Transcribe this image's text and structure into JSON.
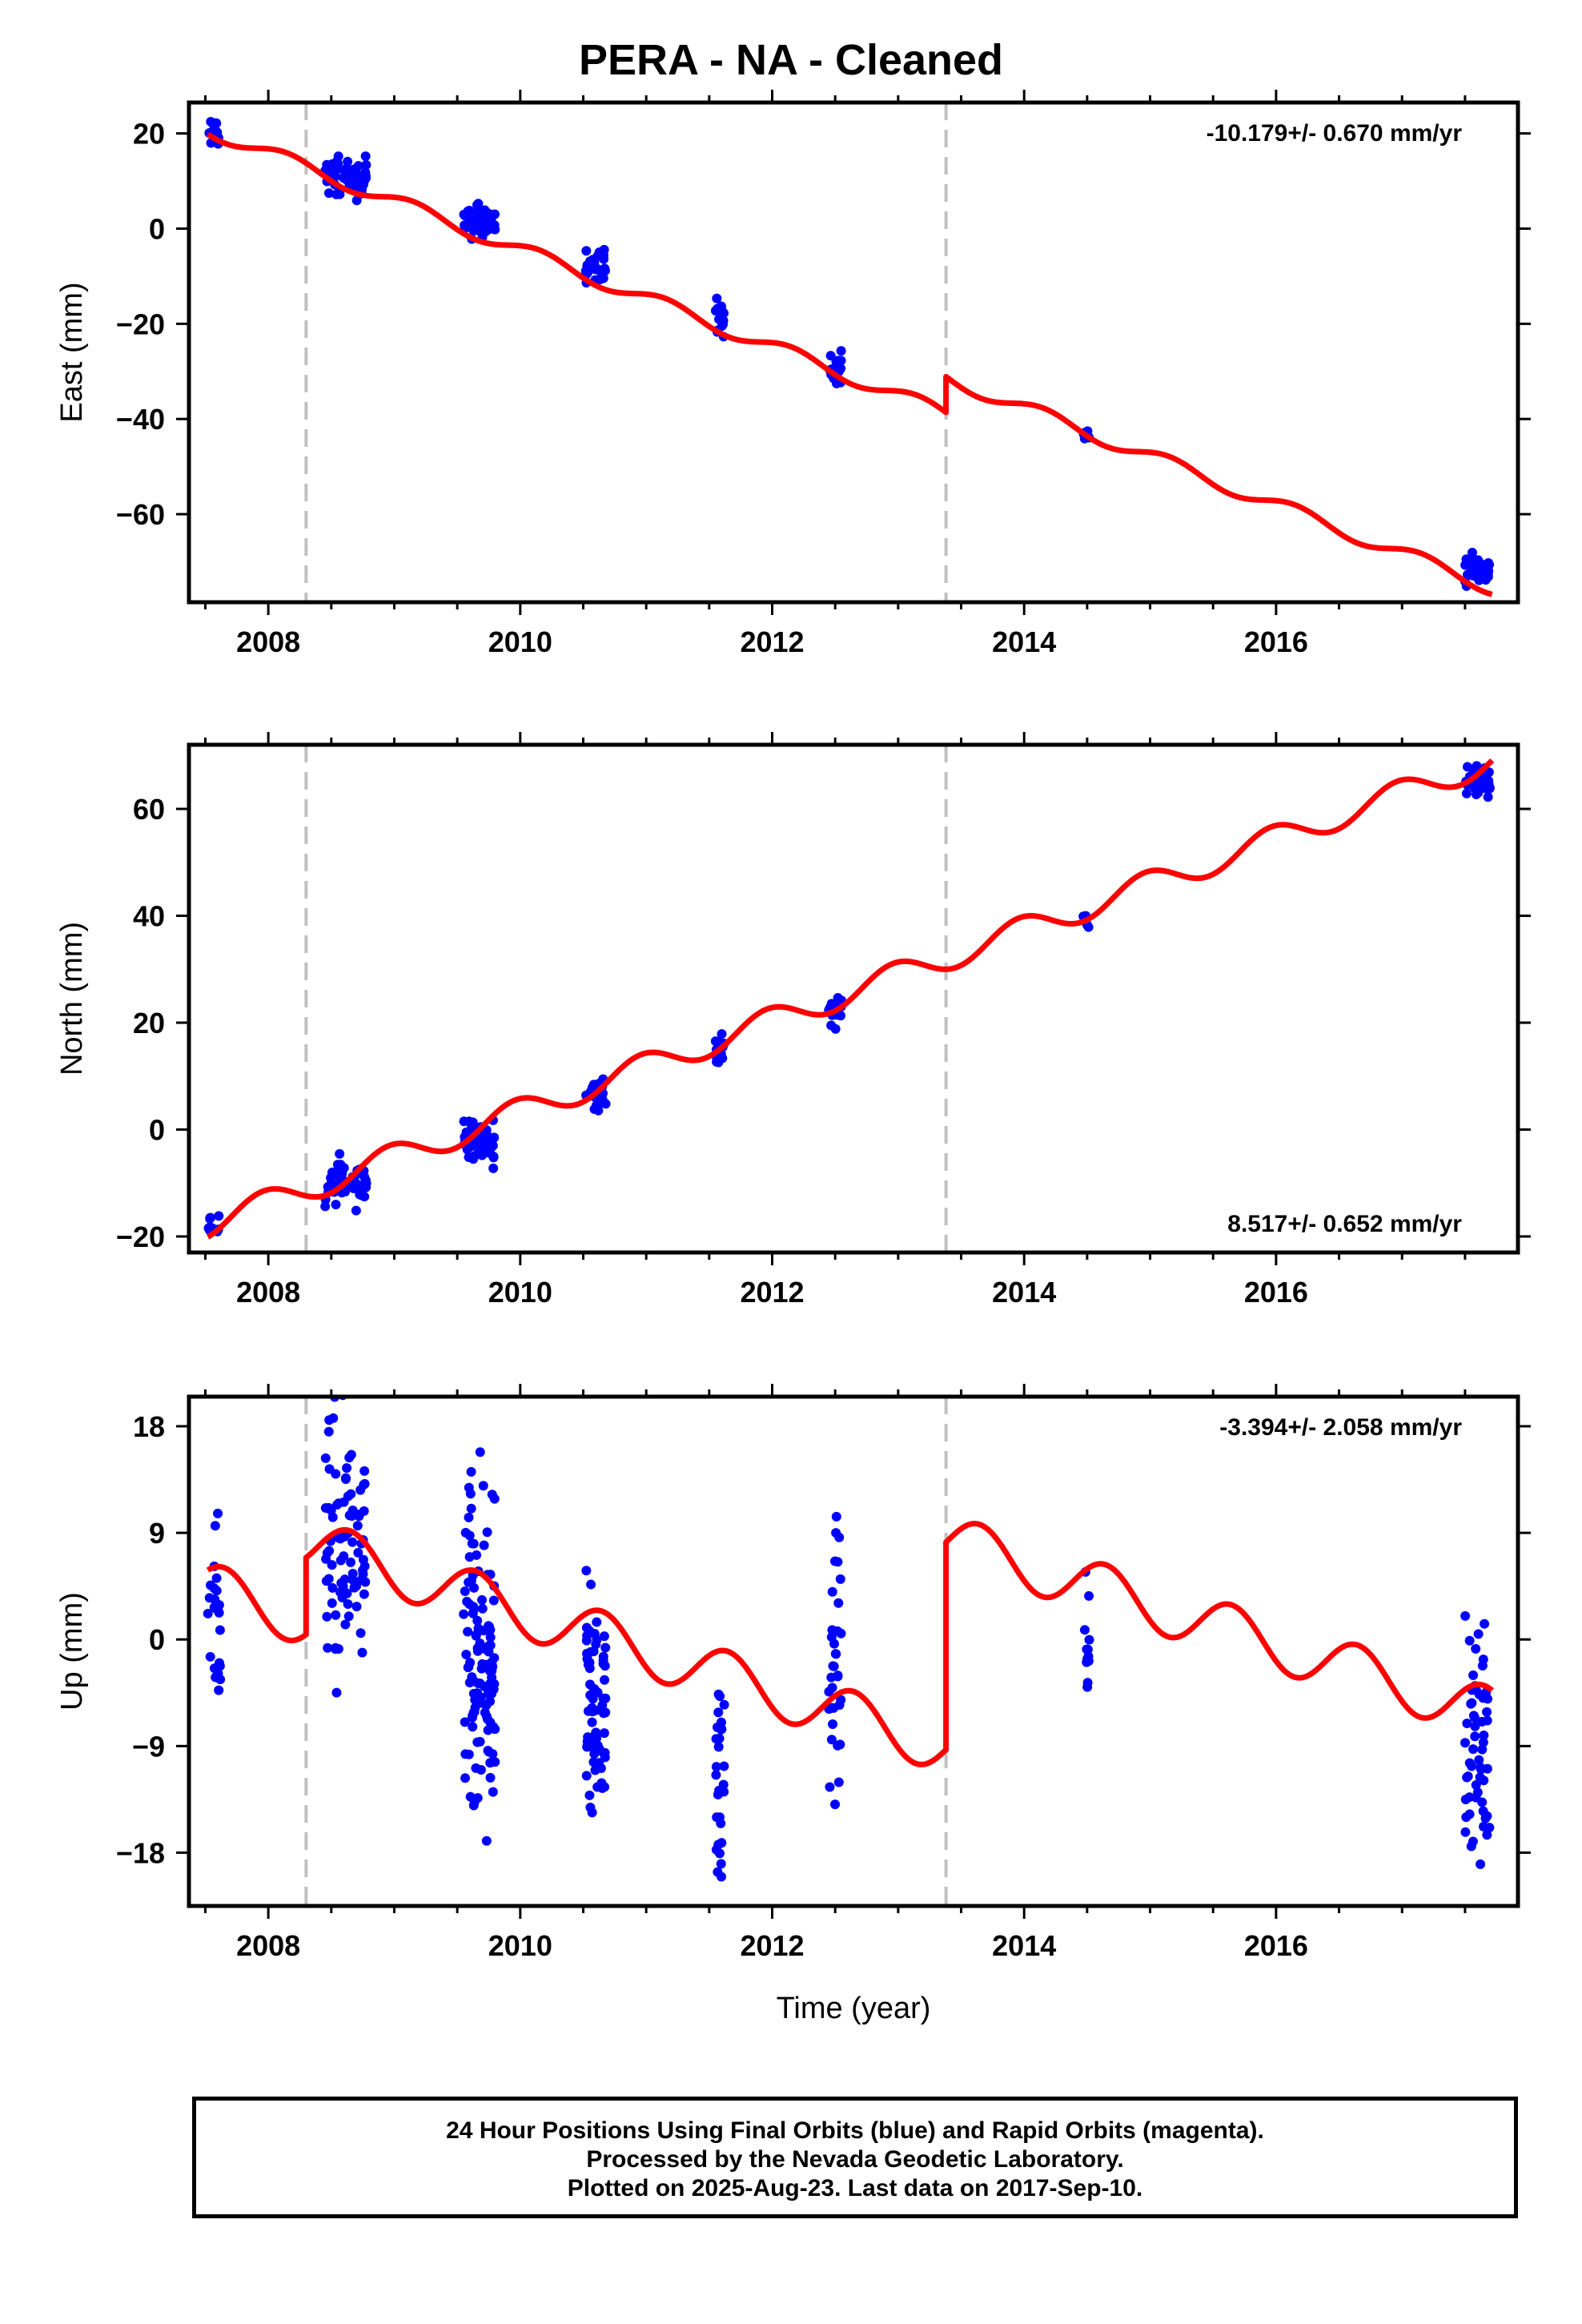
{
  "title": "PERA  - NA - Cleaned",
  "colors": {
    "data_points": "#0000ff",
    "model_line": "#ff0000",
    "offset_lines": "#c0c0c0",
    "frame": "#000000"
  },
  "footer": {
    "line1": "24 Hour Positions Using Final Orbits (blue) and Rapid Orbits (magenta).",
    "line2": "Processed by the Nevada Geodetic Laboratory.",
    "line3": "Plotted on 2025-Aug-23. Last data on 2017-Sep-10."
  },
  "chart_data": [
    {
      "type": "scatter",
      "panel": "east",
      "xlabel": "",
      "ylabel": "East (mm)",
      "xlim": [
        2007.37,
        2017.92
      ],
      "ylim": [
        -78.5,
        26.5
      ],
      "xticks": [
        2008,
        2010,
        2012,
        2014,
        2016
      ],
      "xtick_labels": [
        "2008",
        "2010",
        "2012",
        "2014",
        "2016"
      ],
      "yticks": [
        -60,
        -40,
        -20,
        0,
        20
      ],
      "ytick_labels": [
        "−60",
        "−40",
        "−20",
        "0",
        "20"
      ],
      "rate_text": "-10.179+/- 0.670 mm/yr",
      "rate_position": "top-right",
      "rate_mm_per_yr": -10.179,
      "offset_epochs": [
        2008.3,
        2013.38
      ],
      "model": {
        "t0": 2007.55,
        "y0": 20.5,
        "slope": -10.179,
        "amp": 1.5,
        "phase": 0.6,
        "steps": [
          {
            "t": 2013.38,
            "dy": 7.5
          }
        ]
      },
      "clusters": [
        {
          "t": [
            2007.52,
            2007.62
          ],
          "n": 18,
          "mean": 20.5,
          "spread": 3.5
        },
        {
          "t": [
            2008.45,
            2008.78
          ],
          "n": 55,
          "mean": 10.5,
          "spread": 4.5
        },
        {
          "t": [
            2009.55,
            2009.8
          ],
          "n": 55,
          "mean": 1.5,
          "spread": 3.5
        },
        {
          "t": [
            2010.52,
            2010.68
          ],
          "n": 30,
          "mean": -7.5,
          "spread": 4.0
        },
        {
          "t": [
            2011.55,
            2011.62
          ],
          "n": 14,
          "mean": -18.5,
          "spread": 4.0
        },
        {
          "t": [
            2012.45,
            2012.55
          ],
          "n": 18,
          "mean": -29,
          "spread": 3.5
        },
        {
          "t": [
            2014.47,
            2014.52
          ],
          "n": 8,
          "mean": -43.5,
          "spread": 2.5
        },
        {
          "t": [
            2017.5,
            2017.7
          ],
          "n": 45,
          "mean": -71.5,
          "spread": 3.5
        }
      ]
    },
    {
      "type": "scatter",
      "panel": "north",
      "xlabel": "",
      "ylabel": "North (mm)",
      "xlim": [
        2007.37,
        2017.92
      ],
      "ylim": [
        -23,
        72
      ],
      "xticks": [
        2008,
        2010,
        2012,
        2014,
        2016
      ],
      "xtick_labels": [
        "2008",
        "2010",
        "2012",
        "2014",
        "2016"
      ],
      "yticks": [
        -20,
        0,
        20,
        40,
        60
      ],
      "ytick_labels": [
        "−20",
        "0",
        "20",
        "40",
        "60"
      ],
      "rate_text": "8.517+/- 0.652 mm/yr",
      "rate_position": "bottom-right",
      "rate_mm_per_yr": 8.517,
      "offset_epochs": [
        2008.3,
        2013.38
      ],
      "model": {
        "t0": 2007.55,
        "y0": -17.5,
        "slope": 8.517,
        "amp": 2.5,
        "phase": 1.8,
        "steps": []
      },
      "clusters": [
        {
          "t": [
            2007.52,
            2007.62
          ],
          "n": 10,
          "mean": -17.5,
          "spread": 2.5
        },
        {
          "t": [
            2008.45,
            2008.78
          ],
          "n": 55,
          "mean": -10,
          "spread": 4.5
        },
        {
          "t": [
            2009.55,
            2009.8
          ],
          "n": 55,
          "mean": -2,
          "spread": 4.5
        },
        {
          "t": [
            2010.52,
            2010.68
          ],
          "n": 30,
          "mean": 7,
          "spread": 3.5
        },
        {
          "t": [
            2011.55,
            2011.62
          ],
          "n": 14,
          "mean": 15,
          "spread": 3.5
        },
        {
          "t": [
            2012.45,
            2012.55
          ],
          "n": 18,
          "mean": 21.5,
          "spread": 3.5
        },
        {
          "t": [
            2014.47,
            2014.52
          ],
          "n": 6,
          "mean": 39.5,
          "spread": 2.0
        },
        {
          "t": [
            2017.5,
            2017.7
          ],
          "n": 35,
          "mean": 65,
          "spread": 3.0
        }
      ]
    },
    {
      "type": "scatter",
      "panel": "up",
      "xlabel": "Time (year)",
      "ylabel": "Up (mm)",
      "xlim": [
        2007.37,
        2017.92
      ],
      "ylim": [
        -22.5,
        20.5
      ],
      "xticks": [
        2008,
        2010,
        2012,
        2014,
        2016
      ],
      "xtick_labels": [
        "2008",
        "2010",
        "2012",
        "2014",
        "2016"
      ],
      "yticks": [
        -18,
        -9,
        0,
        9,
        18
      ],
      "ytick_labels": [
        "−18",
        "−9",
        "0",
        "9",
        "18"
      ],
      "rate_text": "-3.394+/- 2.058 mm/yr",
      "rate_position": "top-right",
      "rate_mm_per_yr": -3.394,
      "offset_epochs": [
        2008.3,
        2013.38
      ],
      "model": {
        "t0": 2007.55,
        "y0": 4.2,
        "slope": -3.394,
        "amp": 2.2,
        "phase": 3.8,
        "steps": [
          {
            "t": 2008.3,
            "dy": 6.5
          },
          {
            "t": 2013.38,
            "dy": 17.5
          }
        ]
      },
      "clusters": [
        {
          "t": [
            2007.52,
            2007.62
          ],
          "n": 24,
          "mean": 1,
          "spread": 9
        },
        {
          "t": [
            2008.45,
            2008.78
          ],
          "n": 90,
          "mean": 7,
          "spread": 12
        },
        {
          "t": [
            2009.55,
            2009.8
          ],
          "n": 120,
          "mean": -1,
          "spread": 15
        },
        {
          "t": [
            2010.52,
            2010.68
          ],
          "n": 70,
          "mean": -5.5,
          "spread": 10
        },
        {
          "t": [
            2011.55,
            2011.62
          ],
          "n": 28,
          "mean": -12,
          "spread": 9
        },
        {
          "t": [
            2012.45,
            2012.55
          ],
          "n": 34,
          "mean": -1,
          "spread": 12
        },
        {
          "t": [
            2014.47,
            2014.52
          ],
          "n": 12,
          "mean": -0.5,
          "spread": 6
        },
        {
          "t": [
            2017.5,
            2017.7
          ],
          "n": 60,
          "mean": -8,
          "spread": 12
        }
      ]
    }
  ]
}
